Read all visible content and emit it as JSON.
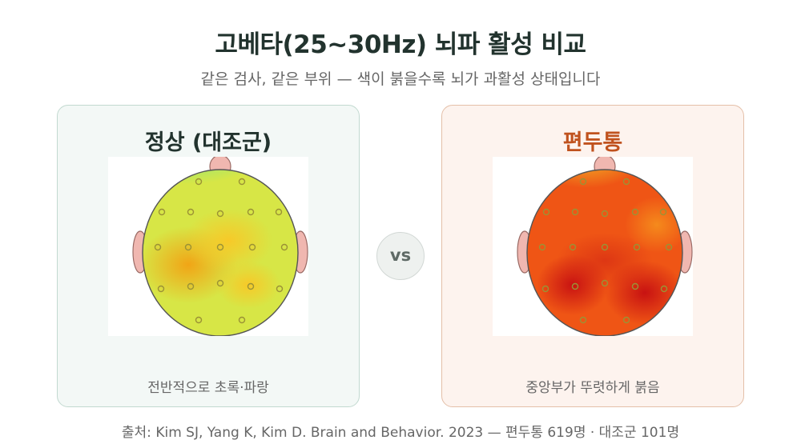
{
  "header": {
    "title": "고베타(25~30Hz) 뇌파 활성 비교",
    "subtitle": "같은 검사, 같은 부위 — 색이 붉을수록 뇌가 과활성 상태입니다"
  },
  "panels": [
    {
      "title": "정상 (대조군)",
      "caption": "전반적으로 초록·파랑",
      "colors": {
        "base": "#d7e646",
        "top": "#3fe3b6",
        "warm": "#f1a516",
        "warm_light": "#f7c928"
      }
    },
    {
      "title": "편두통",
      "caption": "중앙부가 뚜렷하게 붉음",
      "colors": {
        "base": "#ef5515",
        "top": "#f0c22a",
        "hot": "#c81212",
        "warm": "#f58a1c"
      }
    }
  ],
  "vs_label": "vs",
  "source": "출처: Kim SJ, Yang K, Kim D. Brain and Behavior. 2023 — 편두통 619명 · 대조군 101명",
  "colors": {
    "ear": "#f0b7b0",
    "electrode_stroke": "#9b9235"
  }
}
